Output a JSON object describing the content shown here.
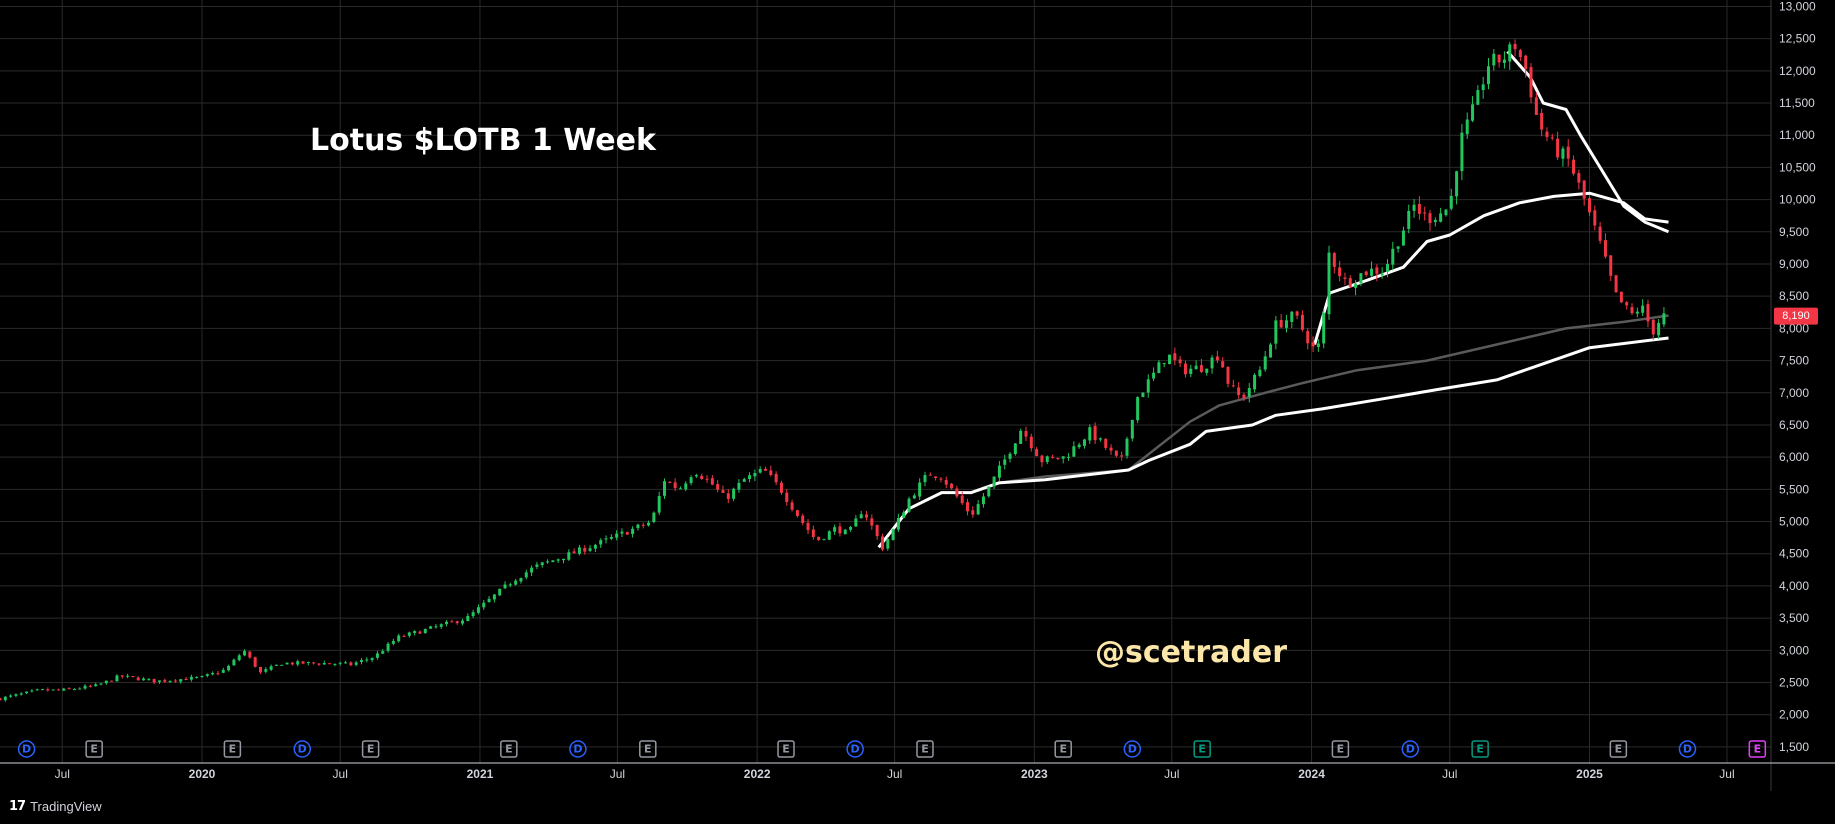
{
  "chart_title": "Lotus $LOTB 1 Week",
  "watermark": "@scetrader",
  "branding": {
    "logo": "17",
    "name": "TradingView"
  },
  "price_badge": {
    "value": "8,190",
    "color": "#f23645"
  },
  "colors": {
    "up": "#22c55e",
    "down": "#f23645",
    "background": "#000000",
    "grid": "#2a2a2a",
    "ma_white": "#ffffff",
    "ma_gray": "#5a5a5a"
  },
  "x_axis_labels": [
    {
      "label": "Jul",
      "date": "2019-07-01"
    },
    {
      "label": "2020",
      "date": "2020-01-01"
    },
    {
      "label": "Jul",
      "date": "2020-07-01"
    },
    {
      "label": "2021",
      "date": "2021-01-01"
    },
    {
      "label": "Jul",
      "date": "2021-07-01"
    },
    {
      "label": "2022",
      "date": "2022-01-01"
    },
    {
      "label": "Jul",
      "date": "2022-07-01"
    },
    {
      "label": "2023",
      "date": "2023-01-01"
    },
    {
      "label": "Jul",
      "date": "2023-07-01"
    },
    {
      "label": "2024",
      "date": "2024-01-01"
    },
    {
      "label": "Jul",
      "date": "2024-07-01"
    },
    {
      "label": "2025",
      "date": "2025-01-01"
    },
    {
      "label": "Jul",
      "date": "2025-07-01"
    }
  ],
  "y_axis_labels": [
    "1,500",
    "2,000",
    "2,500",
    "3,000",
    "3,500",
    "4,000",
    "4,500",
    "5,000",
    "5,500",
    "6,000",
    "6,500",
    "7,000",
    "7,500",
    "8,000",
    "8,500",
    "9,000",
    "9,500",
    "10,000",
    "10,500",
    "11,000",
    "11,500",
    "12,000",
    "12,500",
    "13,000"
  ],
  "events": [
    {
      "type": "D",
      "date": "2019-05-15",
      "color": "#2962ff",
      "icon": "dividend-icon"
    },
    {
      "type": "E",
      "date": "2019-08-12",
      "color": "#9598a1",
      "icon": "earnings-icon"
    },
    {
      "type": "E",
      "date": "2020-02-10",
      "color": "#9598a1",
      "icon": "earnings-icon"
    },
    {
      "type": "D",
      "date": "2020-05-12",
      "color": "#2962ff",
      "icon": "dividend-icon"
    },
    {
      "type": "E",
      "date": "2020-08-10",
      "color": "#9598a1",
      "icon": "earnings-icon"
    },
    {
      "type": "E",
      "date": "2021-02-08",
      "color": "#9598a1",
      "icon": "earnings-icon"
    },
    {
      "type": "D",
      "date": "2021-05-10",
      "color": "#2962ff",
      "icon": "dividend-icon"
    },
    {
      "type": "E",
      "date": "2021-08-10",
      "color": "#9598a1",
      "icon": "earnings-icon"
    },
    {
      "type": "E",
      "date": "2022-02-08",
      "color": "#9598a1",
      "icon": "earnings-icon"
    },
    {
      "type": "D",
      "date": "2022-05-10",
      "color": "#2962ff",
      "icon": "dividend-icon"
    },
    {
      "type": "E",
      "date": "2022-08-10",
      "color": "#9598a1",
      "icon": "earnings-icon"
    },
    {
      "type": "E",
      "date": "2023-02-08",
      "color": "#9598a1",
      "icon": "earnings-icon"
    },
    {
      "type": "D",
      "date": "2023-05-10",
      "color": "#2962ff",
      "icon": "dividend-icon"
    },
    {
      "type": "E",
      "date": "2023-08-10",
      "color": "#089981",
      "icon": "earnings-icon"
    },
    {
      "type": "E",
      "date": "2024-02-08",
      "color": "#9598a1",
      "icon": "earnings-icon"
    },
    {
      "type": "D",
      "date": "2024-05-10",
      "color": "#2962ff",
      "icon": "dividend-icon"
    },
    {
      "type": "E",
      "date": "2024-08-10",
      "color": "#089981",
      "icon": "earnings-icon"
    },
    {
      "type": "E",
      "date": "2025-02-08",
      "color": "#9598a1",
      "icon": "earnings-icon"
    },
    {
      "type": "D",
      "date": "2025-05-10",
      "color": "#2962ff",
      "icon": "dividend-icon"
    },
    {
      "type": "E",
      "date": "2025-08-10",
      "color": "#e040fb",
      "icon": "earnings-icon"
    }
  ],
  "chart_data": {
    "type": "candlestick",
    "interval": "1 Week",
    "ylim": [
      1250,
      13100
    ],
    "xlim": [
      "2019-04-10",
      "2025-08-28"
    ],
    "price_anchors": [
      [
        "2019-04-10",
        2250
      ],
      [
        "2019-06-01",
        2380
      ],
      [
        "2019-07-01",
        2380
      ],
      [
        "2019-08-15",
        2450
      ],
      [
        "2019-09-15",
        2600
      ],
      [
        "2019-11-01",
        2520
      ],
      [
        "2020-01-01",
        2580
      ],
      [
        "2020-02-01",
        2700
      ],
      [
        "2020-02-25",
        3000
      ],
      [
        "2020-03-18",
        2650
      ],
      [
        "2020-04-15",
        2800
      ],
      [
        "2020-06-15",
        2800
      ],
      [
        "2020-07-15",
        2780
      ],
      [
        "2020-08-15",
        2900
      ],
      [
        "2020-09-15",
        3200
      ],
      [
        "2020-10-31",
        3350
      ],
      [
        "2020-12-15",
        3500
      ],
      [
        "2021-01-15",
        3800
      ],
      [
        "2021-02-15",
        4100
      ],
      [
        "2021-03-15",
        4300
      ],
      [
        "2021-05-01",
        4500
      ],
      [
        "2021-06-15",
        4700
      ],
      [
        "2021-07-15",
        4850
      ],
      [
        "2021-08-15",
        5000
      ],
      [
        "2021-09-01",
        5650
      ],
      [
        "2021-09-20",
        5500
      ],
      [
        "2021-10-10",
        5800
      ],
      [
        "2021-11-01",
        5600
      ],
      [
        "2021-11-20",
        5350
      ],
      [
        "2021-12-15",
        5650
      ],
      [
        "2022-01-10",
        5800
      ],
      [
        "2022-02-01",
        5500
      ],
      [
        "2022-03-01",
        5000
      ],
      [
        "2022-03-20",
        4700
      ],
      [
        "2022-04-15",
        4900
      ],
      [
        "2022-05-01",
        4800
      ],
      [
        "2022-05-20",
        5200
      ],
      [
        "2022-06-15",
        4600
      ],
      [
        "2022-07-01",
        4900
      ],
      [
        "2022-07-20",
        5350
      ],
      [
        "2022-08-15",
        5750
      ],
      [
        "2022-09-01",
        5700
      ],
      [
        "2022-09-20",
        5400
      ],
      [
        "2022-10-10",
        5100
      ],
      [
        "2022-11-01",
        5500
      ],
      [
        "2022-11-25",
        6000
      ],
      [
        "2022-12-15",
        6450
      ],
      [
        "2023-01-10",
        5950
      ],
      [
        "2023-02-10",
        6000
      ],
      [
        "2023-03-15",
        6400
      ],
      [
        "2023-04-05",
        6150
      ],
      [
        "2023-04-25",
        5900
      ],
      [
        "2023-05-15",
        6900
      ],
      [
        "2023-06-05",
        7250
      ],
      [
        "2023-06-25",
        7600
      ],
      [
        "2023-07-15",
        7350
      ],
      [
        "2023-08-10",
        7400
      ],
      [
        "2023-09-01",
        7600
      ],
      [
        "2023-09-15",
        7100
      ],
      [
        "2023-10-01",
        6900
      ],
      [
        "2023-10-25",
        7350
      ],
      [
        "2023-11-15",
        8050
      ],
      [
        "2023-12-10",
        8200
      ],
      [
        "2024-01-05",
        7650
      ],
      [
        "2024-01-15",
        7800
      ],
      [
        "2024-01-22",
        9200
      ],
      [
        "2024-02-15",
        8700
      ],
      [
        "2024-03-15",
        8900
      ],
      [
        "2024-04-05",
        8900
      ],
      [
        "2024-04-25",
        9400
      ],
      [
        "2024-05-15",
        9900
      ],
      [
        "2024-06-01",
        9700
      ],
      [
        "2024-06-20",
        9800
      ],
      [
        "2024-07-01",
        9900
      ],
      [
        "2024-07-15",
        10900
      ],
      [
        "2024-08-05",
        11500
      ],
      [
        "2024-08-20",
        12100
      ],
      [
        "2024-09-10",
        12200
      ],
      [
        "2024-09-25",
        12400
      ],
      [
        "2024-10-10",
        12000
      ],
      [
        "2024-10-25",
        11200
      ],
      [
        "2024-11-15",
        10800
      ],
      [
        "2024-12-05",
        10600
      ],
      [
        "2024-12-25",
        10000
      ],
      [
        "2025-01-15",
        9300
      ],
      [
        "2025-02-05",
        8500
      ],
      [
        "2025-02-25",
        8200
      ],
      [
        "2025-03-10",
        8350
      ],
      [
        "2025-03-25",
        7950
      ],
      [
        "2025-04-07",
        8200
      ],
      [
        "2025-04-15",
        8190
      ]
    ],
    "moving_averages": [
      {
        "color": "#ffffff",
        "points": [
          [
            "2022-06-10",
            4600
          ],
          [
            "2022-07-20",
            5200
          ],
          [
            "2022-09-01",
            5450
          ],
          [
            "2022-10-10",
            5450
          ],
          [
            "2022-11-15",
            5600
          ],
          [
            "2023-01-15",
            5700
          ],
          [
            "2023-05-05",
            5800
          ],
          [
            "2023-06-01",
            6050
          ],
          [
            "2023-07-25",
            6550
          ],
          [
            "2023-09-01",
            6800
          ],
          [
            "2023-11-01",
            7000
          ],
          [
            "2023-12-20",
            7150
          ],
          [
            "2024-03-01",
            7350
          ],
          [
            "2024-06-01",
            7500
          ],
          [
            "2024-09-01",
            7750
          ],
          [
            "2024-12-01",
            8000
          ],
          [
            "2025-02-15",
            8100
          ],
          [
            "2025-04-15",
            8200
          ]
        ]
      },
      {
        "color": "#ffffff",
        "points": [
          [
            "2022-06-10",
            4600
          ],
          [
            "2022-07-20",
            5200
          ],
          [
            "2022-09-01",
            5450
          ],
          [
            "2022-10-10",
            5450
          ],
          [
            "2022-11-15",
            5600
          ],
          [
            "2023-01-15",
            5650
          ],
          [
            "2023-05-05",
            5800
          ],
          [
            "2023-06-01",
            5950
          ],
          [
            "2023-07-25",
            6200
          ],
          [
            "2023-08-15",
            6400
          ],
          [
            "2023-10-15",
            6500
          ],
          [
            "2023-11-15",
            6650
          ],
          [
            "2024-01-15",
            6750
          ],
          [
            "2024-04-01",
            6900
          ],
          [
            "2024-06-15",
            7050
          ],
          [
            "2024-09-01",
            7200
          ],
          [
            "2024-11-01",
            7450
          ],
          [
            "2025-01-01",
            7700
          ],
          [
            "2025-04-15",
            7850
          ]
        ]
      },
      {
        "color": "#ffffff",
        "points": [
          [
            "2024-01-05",
            7750
          ],
          [
            "2024-01-25",
            8550
          ],
          [
            "2024-03-15",
            8750
          ],
          [
            "2024-05-01",
            8950
          ],
          [
            "2024-06-01",
            9350
          ],
          [
            "2024-07-01",
            9450
          ],
          [
            "2024-08-15",
            9750
          ],
          [
            "2024-10-01",
            9950
          ],
          [
            "2024-11-15",
            10050
          ],
          [
            "2025-01-01",
            10100
          ],
          [
            "2025-02-15",
            9950
          ],
          [
            "2025-03-15",
            9700
          ],
          [
            "2025-04-15",
            9650
          ]
        ]
      },
      {
        "color": "#ffffff",
        "points": [
          [
            "2024-09-15",
            12300
          ],
          [
            "2024-10-15",
            11900
          ],
          [
            "2024-11-01",
            11500
          ],
          [
            "2024-12-01",
            11400
          ],
          [
            "2024-12-20",
            11000
          ],
          [
            "2025-01-15",
            10500
          ],
          [
            "2025-02-15",
            9900
          ],
          [
            "2025-03-15",
            9650
          ],
          [
            "2025-04-15",
            9500
          ]
        ]
      }
    ]
  }
}
